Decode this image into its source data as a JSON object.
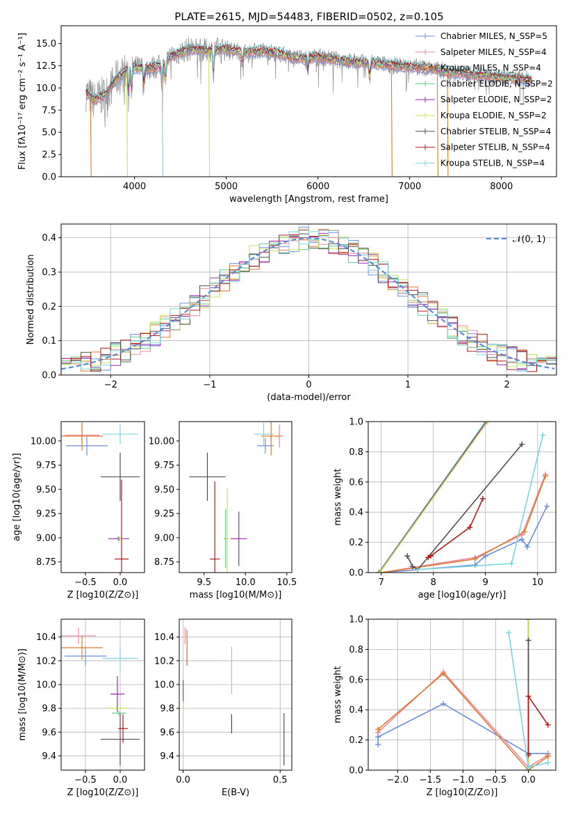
{
  "title": "PLATE=2615, MJD=54483, FIBERID=0502, z=0.105",
  "colors": {
    "Chabrier MILES": "#6b8bdc",
    "Salpeter MILES": "#e88aa0",
    "Kroupa MILES": "#e07a2c",
    "Chabrier ELODIE": "#55d08a",
    "Salpeter ELODIE": "#9a27b5",
    "Kroupa ELODIE": "#c9e05a",
    "Chabrier STELIB": "#4d4d4d",
    "Salpeter STELIB": "#b01818",
    "Kroupa STELIB": "#7ad6dc"
  },
  "chart_data": [
    {
      "type": "line",
      "name": "spectrum",
      "xlabel": "wavelength [Angstrom, rest frame]",
      "ylabel": "Flux [fλ10⁻¹⁷ erg cm⁻² s⁻¹ A⁻¹]",
      "xlim": [
        3200,
        8600
      ],
      "ylim": [
        0,
        17
      ],
      "xticks": [
        "4000",
        "5000",
        "6000",
        "7000",
        "8000"
      ],
      "yticks": [
        "0.0",
        "2.5",
        "5.0",
        "7.5",
        "10.0",
        "12.5",
        "15.0"
      ],
      "grid": false,
      "legend_position": "upper right",
      "legend": [
        {
          "key": "Chabrier MILES",
          "label": "Chabrier MILES, N_SSP=5"
        },
        {
          "key": "Salpeter MILES",
          "label": "Salpeter MILES, N_SSP=4"
        },
        {
          "key": "Kroupa MILES",
          "label": "Kroupa MILES, N_SSP=4"
        },
        {
          "key": "Chabrier ELODIE",
          "label": "Chabrier ELODIE, N_SSP=2"
        },
        {
          "key": "Salpeter ELODIE",
          "label": "Salpeter ELODIE, N_SSP=2"
        },
        {
          "key": "Kroupa ELODIE",
          "label": "Kroupa ELODIE, N_SSP=2"
        },
        {
          "key": "Chabrier STELIB",
          "label": "Chabrier STELIB, N_SSP=4"
        },
        {
          "key": "Salpeter STELIB",
          "label": "Salpeter STELIB, N_SSP=4"
        },
        {
          "key": "Kroupa STELIB",
          "label": "Kroupa STELIB, N_SSP=4"
        }
      ],
      "continuum": [
        [
          3470,
          9.5
        ],
        [
          3560,
          8.6
        ],
        [
          3700,
          9.4
        ],
        [
          3800,
          11.0
        ],
        [
          3900,
          11.8
        ],
        [
          4000,
          12.3
        ],
        [
          4150,
          12.2
        ],
        [
          4300,
          12.5
        ],
        [
          4400,
          13.6
        ],
        [
          4600,
          14.4
        ],
        [
          4800,
          14.2
        ],
        [
          5000,
          14.4
        ],
        [
          5200,
          14.0
        ],
        [
          5400,
          14.2
        ],
        [
          5600,
          13.8
        ],
        [
          5800,
          13.3
        ],
        [
          6000,
          13.5
        ],
        [
          6200,
          13.2
        ],
        [
          6400,
          12.9
        ],
        [
          6600,
          12.8
        ],
        [
          6800,
          12.6
        ],
        [
          7000,
          12.4
        ],
        [
          7200,
          12.2
        ],
        [
          7400,
          11.9
        ],
        [
          7600,
          11.6
        ],
        [
          7800,
          11.4
        ],
        [
          8000,
          11.2
        ],
        [
          8200,
          11.0
        ],
        [
          8330,
          10.9
        ]
      ],
      "sharp_drops": [
        {
          "key": "Kroupa MILES",
          "x": 3520,
          "to": 0
        },
        {
          "key": "Kroupa ELODIE",
          "x": 3915,
          "to": 0
        },
        {
          "key": "Kroupa STELIB",
          "x": 4300,
          "to": 0
        },
        {
          "key": "Kroupa ELODIE",
          "x": 4810,
          "to": 0
        },
        {
          "key": "Kroupa MILES",
          "x": 6800,
          "to": 0
        },
        {
          "key": "Kroupa MILES",
          "x": 7300,
          "to": 0
        },
        {
          "key": "Kroupa MILES",
          "x": 7410,
          "to": 0
        }
      ]
    },
    {
      "type": "step",
      "name": "residual histogram",
      "xlabel": "(data-model)/error",
      "ylabel": "Normed distribution",
      "xlim": [
        -2.5,
        2.5
      ],
      "ylim": [
        0,
        0.44
      ],
      "xticks": [
        "−2",
        "−1",
        "0",
        "1",
        "2"
      ],
      "yticks": [
        "0.0",
        "0.1",
        "0.2",
        "0.3",
        "0.4"
      ],
      "grid": true,
      "legend_position": "upper right",
      "reference_curve": {
        "label": "𝒩(0, 1)",
        "mean": 0,
        "sigma": 1,
        "style": "dashed",
        "color": "#5a8ad8"
      }
    },
    {
      "type": "errorbar",
      "name": "age vs Z",
      "xlabel": "Z [log10(Z/Z⊙)]",
      "ylabel": "age  [log10(age/yr)]",
      "xlim": [
        -0.85,
        0.35
      ],
      "ylim": [
        8.64,
        10.2
      ],
      "xticks": [
        "−0.5",
        "0.0"
      ],
      "yticks": [
        "8.75",
        "9.00",
        "9.25",
        "9.50",
        "9.75",
        "10.00"
      ],
      "points": [
        {
          "key": "Chabrier MILES",
          "x": -0.48,
          "y": 9.95,
          "xerr": 0.3,
          "yerr": 0.1
        },
        {
          "key": "Salpeter MILES",
          "x": -0.55,
          "y": 10.06,
          "xerr": 0.25,
          "yerr": 0.08
        },
        {
          "key": "Kroupa MILES",
          "x": -0.55,
          "y": 10.05,
          "xerr": 0.3,
          "yerr": 0.15
        },
        {
          "key": "Chabrier ELODIE",
          "x": -0.03,
          "y": 8.99,
          "xerr": 0.05,
          "yerr": 0.02
        },
        {
          "key": "Salpeter ELODIE",
          "x": -0.02,
          "y": 8.99,
          "xerr": 0.15,
          "yerr": 0.02
        },
        {
          "key": "Kroupa ELODIE",
          "x": 0.0,
          "y": 8.99,
          "xerr": 0.03,
          "yerr": 0.02
        },
        {
          "key": "Chabrier STELIB",
          "x": 0.0,
          "y": 9.63,
          "xerr": 0.28,
          "yerr": 0.25
        },
        {
          "key": "Salpeter STELIB",
          "x": 0.02,
          "y": 8.78,
          "xerr": 0.1,
          "yerr": 0.82
        },
        {
          "key": "Kroupa STELIB",
          "x": 0.0,
          "y": 10.07,
          "xerr": 0.25,
          "yerr": 0.1
        }
      ]
    },
    {
      "type": "errorbar",
      "name": "age vs mass",
      "xlabel": "mass [log10(M/M⊙)]",
      "ylabel": "",
      "xlim": [
        9.2,
        10.56
      ],
      "ylim": [
        8.64,
        10.2
      ],
      "xticks": [
        "9.5",
        "10.0",
        "10.5"
      ],
      "yticks": [
        "8.75",
        "9.00",
        "9.25",
        "9.50",
        "9.75",
        "10.00"
      ],
      "points": [
        {
          "key": "Chabrier MILES",
          "x": 10.24,
          "y": 9.95,
          "xerr": 0.1,
          "yerr": 0.08
        },
        {
          "key": "Salpeter MILES",
          "x": 10.41,
          "y": 10.05,
          "xerr": 0.05,
          "yerr": 0.12
        },
        {
          "key": "Kroupa MILES",
          "x": 10.31,
          "y": 10.05,
          "xerr": 0.12,
          "yerr": 0.2
        },
        {
          "key": "Chabrier ELODIE",
          "x": 9.76,
          "y": 8.99,
          "xerr": 0.02,
          "yerr": 0.3
        },
        {
          "key": "Salpeter ELODIE",
          "x": 9.92,
          "y": 8.99,
          "xerr": 0.1,
          "yerr": 0.28
        },
        {
          "key": "Kroupa ELODIE",
          "x": 9.78,
          "y": 8.99,
          "xerr": 0.02,
          "yerr": 0.52
        },
        {
          "key": "Chabrier STELIB",
          "x": 9.54,
          "y": 9.63,
          "xerr": 0.22,
          "yerr": 0.25
        },
        {
          "key": "Salpeter STELIB",
          "x": 9.63,
          "y": 8.78,
          "xerr": 0.06,
          "yerr": 0.8
        },
        {
          "key": "Kroupa STELIB",
          "x": 10.22,
          "y": 10.07,
          "xerr": 0.12,
          "yerr": 0.12
        }
      ]
    },
    {
      "type": "line",
      "name": "mass weight vs age",
      "xlabel": "age  [log10(age/yr)]",
      "ylabel": "mass weight",
      "xlim": [
        6.75,
        10.35
      ],
      "ylim": [
        0,
        1
      ],
      "xticks": [
        "7",
        "8",
        "9",
        "10"
      ],
      "yticks": [
        "0.0",
        "0.2",
        "0.4",
        "0.6",
        "0.8",
        "1.0"
      ],
      "grid": true,
      "series": [
        {
          "key": "Chabrier MILES",
          "x": [
            7.0,
            8.8,
            9.0,
            9.7,
            9.8,
            10.18
          ],
          "y": [
            0.0,
            0.05,
            0.11,
            0.22,
            0.17,
            0.44
          ]
        },
        {
          "key": "Salpeter MILES",
          "x": [
            7.0,
            8.8,
            9.7,
            10.15
          ],
          "y": [
            0.0,
            0.1,
            0.25,
            0.65
          ]
        },
        {
          "key": "Kroupa MILES",
          "x": [
            7.0,
            8.8,
            9.75,
            10.15
          ],
          "y": [
            0.0,
            0.09,
            0.27,
            0.64
          ]
        },
        {
          "key": "Chabrier ELODIE",
          "x": [
            6.95,
            9.0
          ],
          "y": [
            0.0,
            1.0
          ]
        },
        {
          "key": "Salpeter ELODIE",
          "x": [
            6.96,
            9.02
          ],
          "y": [
            0.0,
            1.0
          ]
        },
        {
          "key": "Kroupa ELODIE",
          "x": [
            6.97,
            9.04
          ],
          "y": [
            0.0,
            1.0
          ]
        },
        {
          "key": "Chabrier STELIB",
          "x": [
            7.5,
            7.6,
            7.7,
            9.7
          ],
          "y": [
            0.11,
            0.04,
            0.02,
            0.85
          ]
        },
        {
          "key": "Salpeter STELIB",
          "x": [
            7.9,
            7.95,
            8.7,
            8.95
          ],
          "y": [
            0.1,
            0.11,
            0.3,
            0.49
          ]
        },
        {
          "key": "Kroupa STELIB",
          "x": [
            7.7,
            9.5,
            10.1
          ],
          "y": [
            0.02,
            0.06,
            0.91
          ]
        }
      ]
    },
    {
      "type": "errorbar",
      "name": "mass vs Z",
      "xlabel": "Z [log10(Z/Z⊙)]",
      "ylabel": "mass [log10(M/M⊙)]",
      "xlim": [
        -0.85,
        0.35
      ],
      "ylim": [
        9.28,
        10.55
      ],
      "xticks": [
        "−0.5",
        "0.0"
      ],
      "yticks": [
        "9.4",
        "9.6",
        "9.8",
        "10.0",
        "10.2",
        "10.4"
      ],
      "grid": true,
      "points": [
        {
          "key": "Chabrier MILES",
          "x": -0.5,
          "y": 10.24,
          "xerr": 0.3,
          "yerr": 0.08
        },
        {
          "key": "Salpeter MILES",
          "x": -0.6,
          "y": 10.41,
          "xerr": 0.25,
          "yerr": 0.07
        },
        {
          "key": "Kroupa MILES",
          "x": -0.55,
          "y": 10.31,
          "xerr": 0.3,
          "yerr": 0.1
        },
        {
          "key": "Chabrier ELODIE",
          "x": -0.02,
          "y": 9.76,
          "xerr": 0.1,
          "yerr": 0.02
        },
        {
          "key": "Salpeter ELODIE",
          "x": -0.04,
          "y": 9.92,
          "xerr": 0.1,
          "yerr": 0.15
        },
        {
          "key": "Kroupa ELODIE",
          "x": -0.05,
          "y": 9.8,
          "xerr": 0.15,
          "yerr": 0.02
        },
        {
          "key": "Chabrier STELIB",
          "x": 0.0,
          "y": 9.54,
          "xerr": 0.28,
          "yerr": 0.22
        },
        {
          "key": "Salpeter STELIB",
          "x": 0.04,
          "y": 9.63,
          "xerr": 0.07,
          "yerr": 0.12
        },
        {
          "key": "Kroupa STELIB",
          "x": 0.0,
          "y": 10.22,
          "xerr": 0.25,
          "yerr": 0.1
        }
      ]
    },
    {
      "type": "errorbar",
      "name": "mass vs E(B-V)",
      "xlabel": "E(B-V)",
      "ylabel": "",
      "xlim": [
        -0.02,
        0.56
      ],
      "ylim": [
        9.28,
        10.55
      ],
      "xticks": [
        "0.0",
        "0.5"
      ],
      "yticks": [
        "9.4",
        "9.6",
        "9.8",
        "10.0",
        "10.2",
        "10.4"
      ],
      "grid": true,
      "points": [
        {
          "key": "Chabrier MILES",
          "x": 0.02,
          "y": 10.24,
          "xerr": 0.0,
          "yerr": 0.08
        },
        {
          "key": "Salpeter MILES",
          "x": 0.01,
          "y": 10.41,
          "xerr": 0.0,
          "yerr": 0.07
        },
        {
          "key": "Kroupa MILES",
          "x": 0.02,
          "y": 10.31,
          "xerr": 0.0,
          "yerr": 0.15
        },
        {
          "key": "Chabrier ELODIE",
          "x": 0.0,
          "y": 9.76,
          "xerr": 0.0,
          "yerr": 0.02
        },
        {
          "key": "Salpeter ELODIE",
          "x": 0.0,
          "y": 9.92,
          "xerr": 0.0,
          "yerr": 0.12
        },
        {
          "key": "Kroupa ELODIE",
          "x": 0.0,
          "y": 9.8,
          "xerr": 0.0,
          "yerr": 0.06
        },
        {
          "key": "Chabrier STELIB",
          "x": 0.52,
          "y": 9.54,
          "xerr": 0.0,
          "yerr": 0.22
        },
        {
          "key": "Salpeter STELIB",
          "x": 0.25,
          "y": 9.67,
          "xerr": 0.0,
          "yerr": 0.08
        },
        {
          "key": "Kroupa STELIB",
          "x": 0.25,
          "y": 10.12,
          "xerr": 0.0,
          "yerr": 0.2
        }
      ]
    },
    {
      "type": "line",
      "name": "mass weight vs Z",
      "xlabel": "Z [log10(Z/Z⊙)]",
      "ylabel": "mass weight",
      "xlim": [
        -2.45,
        0.42
      ],
      "ylim": [
        0,
        1
      ],
      "xticks": [
        "−2.0",
        "−1.5",
        "−1.0",
        "−0.5",
        "0.0"
      ],
      "yticks": [
        "0.0",
        "0.2",
        "0.4",
        "0.6",
        "0.8",
        "1.0"
      ],
      "grid": true,
      "series": [
        {
          "key": "Chabrier MILES",
          "x": [
            -2.3,
            -2.3,
            -1.3,
            0.0,
            0.3
          ],
          "y": [
            0.17,
            0.22,
            0.44,
            0.11,
            0.11
          ]
        },
        {
          "key": "Salpeter MILES",
          "x": [
            -2.3,
            -1.3,
            0.0,
            0.3
          ],
          "y": [
            0.25,
            0.65,
            0.02,
            0.1
          ]
        },
        {
          "key": "Kroupa MILES",
          "x": [
            -2.3,
            -1.3,
            0.0,
            0.3
          ],
          "y": [
            0.27,
            0.64,
            0.0,
            0.09
          ]
        },
        {
          "key": "Chabrier ELODIE",
          "x": [
            0.0,
            0.0
          ],
          "y": [
            0.0,
            1.0
          ]
        },
        {
          "key": "Salpeter ELODIE",
          "x": [
            0.0,
            0.0
          ],
          "y": [
            0.0,
            1.0
          ]
        },
        {
          "key": "Kroupa ELODIE",
          "x": [
            0.0,
            0.0
          ],
          "y": [
            0.0,
            1.0
          ]
        },
        {
          "key": "Chabrier STELIB",
          "x": [
            0.0,
            0.0
          ],
          "y": [
            0.11,
            0.86
          ]
        },
        {
          "key": "Salpeter STELIB",
          "x": [
            0.0,
            0.0,
            0.3
          ],
          "y": [
            0.1,
            0.49,
            0.3
          ]
        },
        {
          "key": "Kroupa STELIB",
          "x": [
            -0.3,
            0.0,
            0.3
          ],
          "y": [
            0.91,
            0.02,
            0.05
          ]
        }
      ]
    }
  ]
}
